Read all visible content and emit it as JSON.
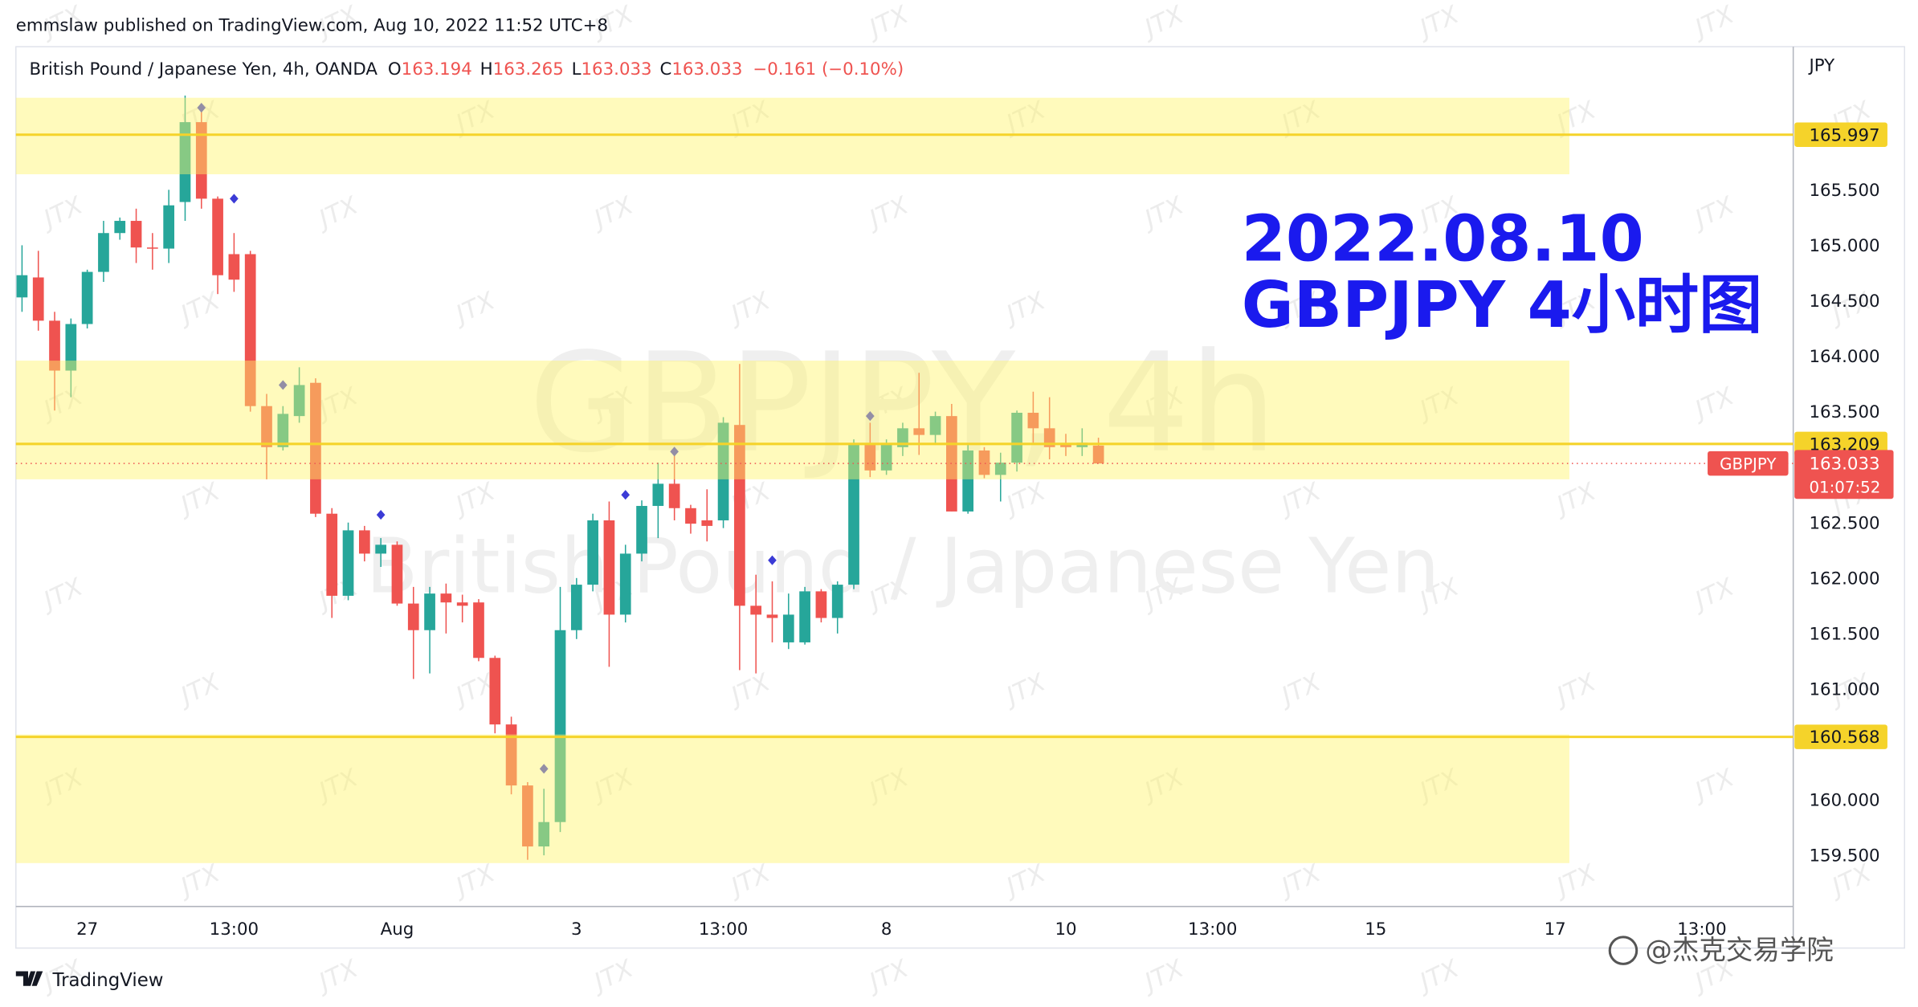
{
  "header": "emmslaw published on TradingView.com, Aug 10, 2022 11:52 UTC+8",
  "chart_data": {
    "type": "candlestick",
    "legend": {
      "symbol": "British Pound / Japanese Yen, 4h, OANDA",
      "o_label": "O",
      "o_value": 163.194,
      "h_label": "H",
      "h_value": 163.265,
      "l_label": "L",
      "l_value": 163.033,
      "c_label": "C",
      "c_value": 163.033,
      "change": "−0.161 (−0.10%)"
    },
    "currency": "JPY",
    "watermark_symbol": "GBPJPY, 4h",
    "watermark_name": "British Pound / Japanese Yen",
    "annotation_line1": "2022.08.10",
    "annotation_line2": "GBPJPY 4小时图",
    "annotation_color": "#1a1aee",
    "up_color": "#26a69a",
    "down_color": "#ef5350",
    "open": [
      164.53,
      164.71,
      164.32,
      163.87,
      164.29,
      164.76,
      165.11,
      165.22,
      164.98,
      164.97,
      165.39,
      166.11,
      165.42,
      164.92,
      164.92,
      163.55,
      163.18,
      163.46,
      163.76,
      162.58,
      161.84,
      162.43,
      162.22,
      162.3,
      161.77,
      161.53,
      161.86,
      161.78,
      161.78,
      161.28,
      160.68,
      160.13,
      159.58,
      159.8,
      161.53,
      161.94,
      162.52,
      161.67,
      162.22,
      162.65,
      162.85,
      162.63,
      162.52,
      162.52,
      163.38,
      161.75,
      161.67,
      161.42,
      161.42,
      161.88,
      161.64,
      161.94,
      163.21,
      162.97,
      163.18,
      163.35,
      163.29,
      163.46,
      162.6,
      163.15,
      162.93,
      163.04,
      163.49,
      163.35,
      163.21,
      163.18,
      163.194
    ],
    "high": [
      165.0,
      164.95,
      164.4,
      164.34,
      164.78,
      165.22,
      165.25,
      165.33,
      165.11,
      165.5,
      166.35,
      166.27,
      165.44,
      165.11,
      164.95,
      163.66,
      163.55,
      163.9,
      163.8,
      162.63,
      162.5,
      162.47,
      162.36,
      162.33,
      161.92,
      161.92,
      161.95,
      161.85,
      161.81,
      161.3,
      160.75,
      160.16,
      160.1,
      161.92,
      162.0,
      162.58,
      162.69,
      162.3,
      162.7,
      163.04,
      163.13,
      162.66,
      162.8,
      163.45,
      163.93,
      162.03,
      161.97,
      161.86,
      161.92,
      161.9,
      161.97,
      163.25,
      163.4,
      163.25,
      163.4,
      163.85,
      163.5,
      163.57,
      163.2,
      163.18,
      163.13,
      163.51,
      163.68,
      163.63,
      163.3,
      163.35,
      163.265
    ],
    "low": [
      164.4,
      164.23,
      163.51,
      163.63,
      164.25,
      164.67,
      165.05,
      164.84,
      164.78,
      164.84,
      165.22,
      165.33,
      164.56,
      164.58,
      163.5,
      162.89,
      163.15,
      163.4,
      162.55,
      161.64,
      161.8,
      162.15,
      162.1,
      161.75,
      161.09,
      161.14,
      161.5,
      161.6,
      161.25,
      160.6,
      160.05,
      159.46,
      159.5,
      159.71,
      161.45,
      161.88,
      161.2,
      161.6,
      162.15,
      162.36,
      162.52,
      162.4,
      162.33,
      162.45,
      161.17,
      161.14,
      161.42,
      161.36,
      161.4,
      161.6,
      161.5,
      161.9,
      162.91,
      162.93,
      163.1,
      163.11,
      163.2,
      162.6,
      162.58,
      162.9,
      162.69,
      162.96,
      163.22,
      163.07,
      163.1,
      163.1,
      163.033
    ],
    "close": [
      164.73,
      164.32,
      163.87,
      164.29,
      164.76,
      165.11,
      165.22,
      164.98,
      164.97,
      165.36,
      166.11,
      165.42,
      164.73,
      164.69,
      163.55,
      163.18,
      163.48,
      163.74,
      162.58,
      161.84,
      162.43,
      162.22,
      162.3,
      161.77,
      161.53,
      161.86,
      161.78,
      161.75,
      161.28,
      160.68,
      160.13,
      159.58,
      159.8,
      161.53,
      161.94,
      162.52,
      161.67,
      162.22,
      162.65,
      162.85,
      162.63,
      162.49,
      162.47,
      163.4,
      161.75,
      161.67,
      161.64,
      161.67,
      161.88,
      161.64,
      161.94,
      163.21,
      162.97,
      163.21,
      163.35,
      163.29,
      163.46,
      162.6,
      163.15,
      162.93,
      163.04,
      163.49,
      163.35,
      163.18,
      163.18,
      163.22,
      163.033
    ],
    "markers": {
      "color": "#3b3bd6",
      "index": [
        11,
        13,
        16,
        22,
        32,
        37,
        40,
        46,
        52
      ],
      "price": [
        166.24,
        165.42,
        163.74,
        162.57,
        160.28,
        162.75,
        163.14,
        162.16,
        163.46
      ]
    },
    "zones": [
      [
        166.33,
        165.64
      ],
      [
        163.96,
        162.89
      ],
      [
        160.59,
        159.43
      ]
    ],
    "zone_color": "#fff36b",
    "levels": [
      165.997,
      163.209,
      160.568
    ],
    "level_color": "#f5d32a",
    "symbol_tag": "GBPJPY",
    "countdown": "01:07:52",
    "xlim": [
      -0.375,
      108.6
    ],
    "xticks": [
      {
        "value": 4,
        "label": "27"
      },
      {
        "value": 13,
        "label": "13:00"
      },
      {
        "value": 23,
        "label": "Aug"
      },
      {
        "value": 34,
        "label": "3"
      },
      {
        "value": 43,
        "label": "13:00"
      },
      {
        "value": 53,
        "label": "8"
      },
      {
        "value": 64,
        "label": "10"
      },
      {
        "value": 73,
        "label": "13:00"
      },
      {
        "value": 83,
        "label": "15"
      },
      {
        "value": 94,
        "label": "17"
      },
      {
        "value": 103,
        "label": "13:00"
      }
    ],
    "ylim": [
      159.05,
      166.79
    ],
    "yticks": [
      {
        "value": 165.5,
        "label": "165.500"
      },
      {
        "value": 165,
        "label": "165.000"
      },
      {
        "value": 164.5,
        "label": "164.500"
      },
      {
        "value": 164,
        "label": "164.000"
      },
      {
        "value": 163.5,
        "label": "163.500"
      },
      {
        "value": 162.5,
        "label": "162.500"
      },
      {
        "value": 162,
        "label": "162.000"
      },
      {
        "value": 161.5,
        "label": "161.500"
      },
      {
        "value": 161,
        "label": "161.000"
      },
      {
        "value": 160,
        "label": "160.000"
      },
      {
        "value": 159.5,
        "label": "159.500"
      }
    ],
    "grid": false
  },
  "footer": {
    "brand": "TradingView",
    "watermark": "JTX",
    "credit": "@杰克交易学院"
  }
}
